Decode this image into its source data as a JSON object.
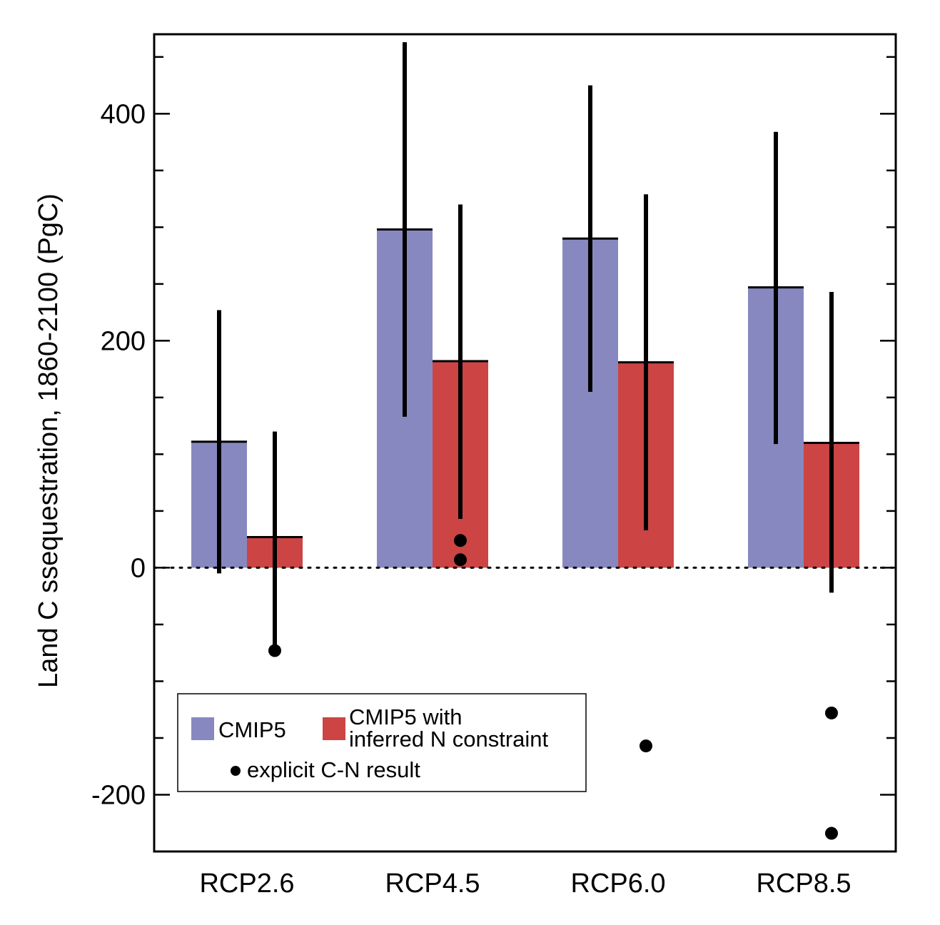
{
  "chart_data": {
    "type": "bar",
    "categories": [
      "RCP2.6",
      "RCP4.5",
      "RCP6.0",
      "RCP8.5"
    ],
    "ylabel": "Land C ssequestration, 1860-2100 (PgC)",
    "xlabel": "",
    "title": "",
    "ylim": [
      -250,
      470
    ],
    "yticks": [
      -200,
      0,
      200,
      400
    ],
    "ytick_labels": [
      "-200",
      "0",
      "200",
      "400"
    ],
    "minor_tick_step": 50,
    "zero_line": "dotted",
    "grid": false,
    "series": [
      {
        "name": "CMIP5",
        "color": "#8888c0",
        "values": [
          111,
          298,
          290,
          247
        ],
        "error_low": [
          -5,
          133,
          155,
          109
        ],
        "error_high": [
          227,
          463,
          425,
          384
        ]
      },
      {
        "name": "CMIP5 with inferred N constraint",
        "color": "#cc4444",
        "values": [
          27,
          182,
          181,
          110
        ],
        "error_low": [
          -73,
          43,
          33,
          -22
        ],
        "error_high": [
          120,
          320,
          329,
          243
        ]
      }
    ],
    "explicit_cn_points": [
      {
        "category": "RCP2.6",
        "values": [
          -73
        ]
      },
      {
        "category": "RCP4.5",
        "values": [
          24,
          7
        ]
      },
      {
        "category": "RCP6.0",
        "values": [
          -157
        ]
      },
      {
        "category": "RCP8.5",
        "values": [
          -128,
          -234
        ]
      }
    ],
    "legend": {
      "placement": "bottom-left",
      "entries": [
        {
          "label_lines": [
            "CMIP5"
          ],
          "color": "#8888c0",
          "marker": "box"
        },
        {
          "label_lines": [
            "CMIP5 with",
            "inferred N constraint"
          ],
          "color": "#cc4444",
          "marker": "box"
        },
        {
          "label_lines": [
            "explicit C-N result"
          ],
          "color": "#000000",
          "marker": "dot"
        }
      ]
    }
  }
}
